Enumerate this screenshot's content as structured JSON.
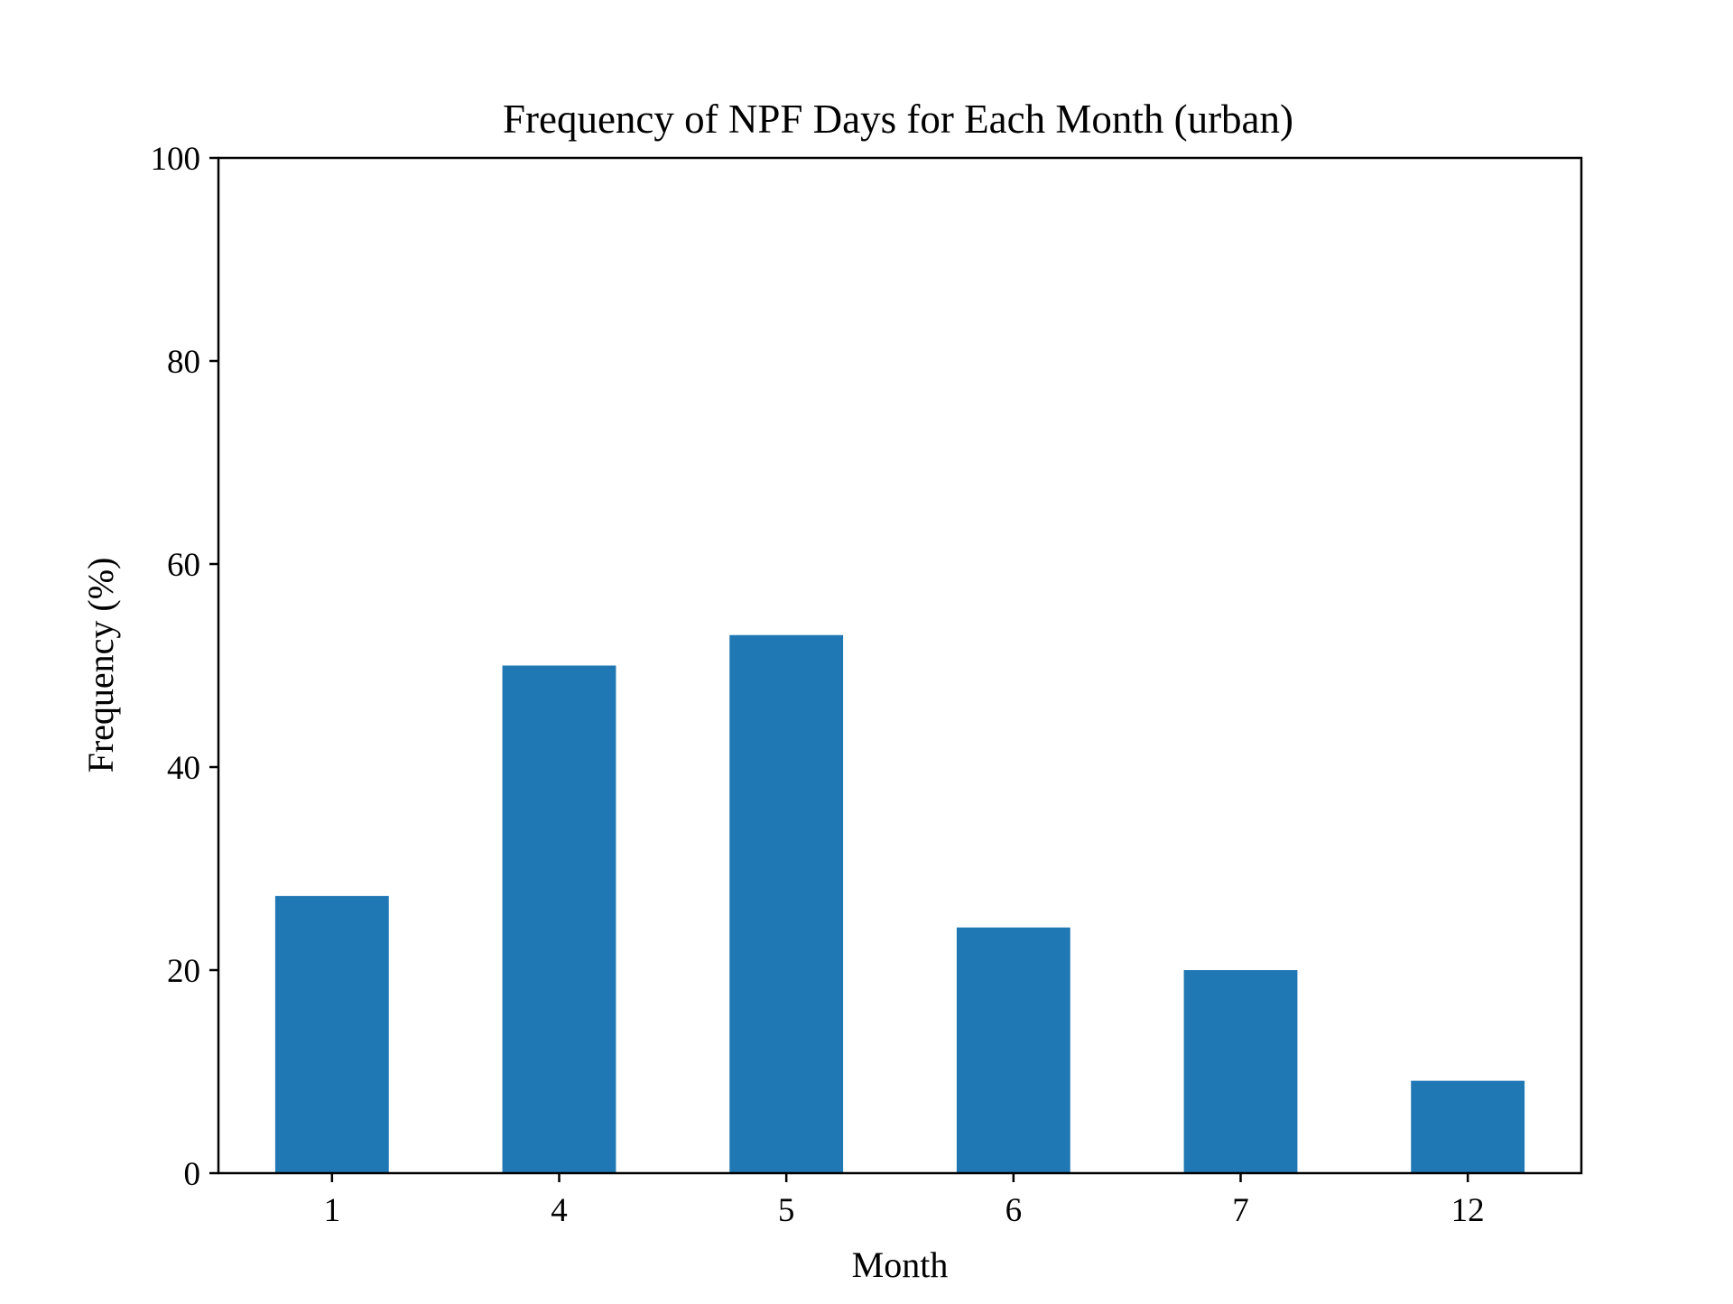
{
  "chart_data": {
    "type": "bar",
    "title": "Frequency of NPF Days for Each Month (urban)",
    "xlabel": "Month",
    "ylabel": "Frequency (%)",
    "categories": [
      "1",
      "4",
      "5",
      "6",
      "7",
      "12"
    ],
    "values": [
      27.3,
      50.0,
      53.0,
      24.2,
      20.0,
      9.1
    ],
    "ylim": [
      0,
      100
    ],
    "yticks": [
      "0",
      "20",
      "40",
      "60",
      "80",
      "100"
    ],
    "grid": false,
    "legend": "none",
    "bar_color": "#1f77b4"
  }
}
